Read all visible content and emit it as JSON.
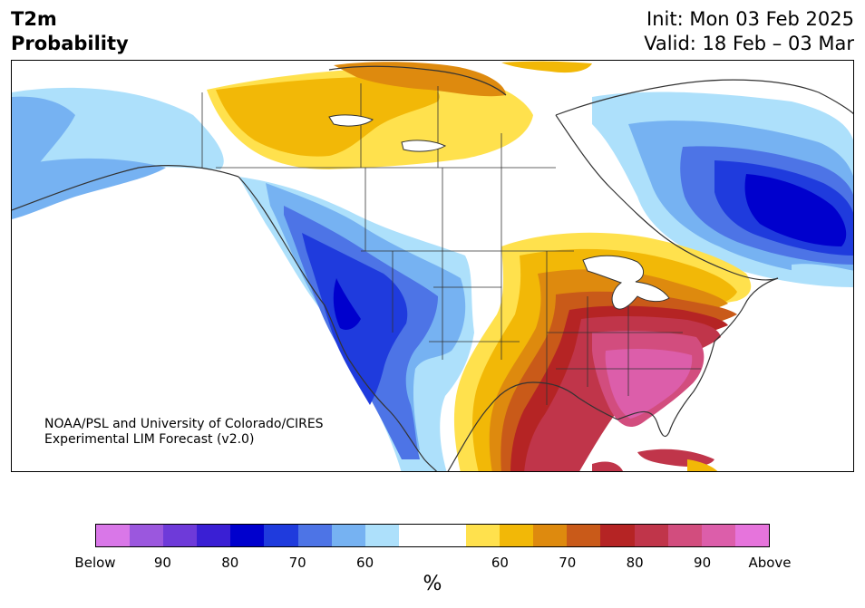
{
  "header": {
    "variable": "T2m",
    "product": "Probability",
    "init": "Init: Mon 03 Feb 2025",
    "valid": "Valid: 18 Feb – 03 Mar"
  },
  "credit": {
    "line1": "NOAA/PSL and University of Colorado/CIRES",
    "line2": "Experimental LIM Forecast (v2.0)"
  },
  "colorbar": {
    "colors": [
      "#d977e8",
      "#9b57de",
      "#6e3ad9",
      "#3a1fd4",
      "#0000cd",
      "#1f3bdd",
      "#4d74e6",
      "#76b2f2",
      "#ade0fb",
      "#ffffff",
      "#ffffff",
      "#ffe14d",
      "#f2b807",
      "#de8a0e",
      "#c95a19",
      "#b52424",
      "#c0354a",
      "#d24d7e",
      "#dc5eaa",
      "#e674dc"
    ],
    "tick_labels": [
      "Below",
      "90",
      "80",
      "70",
      "60",
      "60",
      "70",
      "80",
      "90",
      "Above"
    ],
    "unit": "%"
  },
  "map": {
    "land": "#ffffff",
    "lines": "#333333",
    "cold_strong": "#0000cd",
    "cold_mid": "#1f3bdd",
    "cold_light": "#4d74e6",
    "cold_pale": "#76b2f2",
    "cold_faint": "#ade0fb",
    "warm_faint": "#ffe14d",
    "warm_light": "#f2b807",
    "warm_mid": "#de8a0e",
    "warm_orange": "#c95a19",
    "warm_red": "#b52424",
    "warm_crimson": "#c0354a",
    "warm_pink": "#d24d7e",
    "warm_magenta": "#dc5eaa"
  }
}
